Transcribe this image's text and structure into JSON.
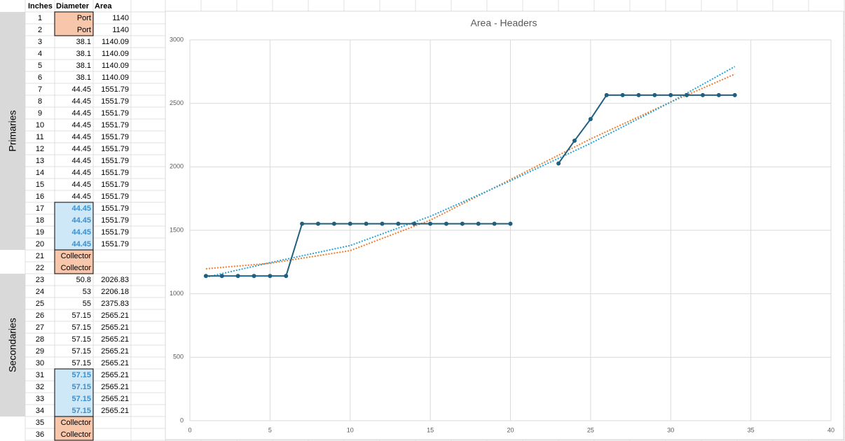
{
  "table": {
    "header": [
      "Inches",
      "Diameter",
      "Area"
    ],
    "groups": [
      "Primaries",
      "Secondaries"
    ],
    "rows": [
      [
        "1",
        "Port",
        "1140"
      ],
      [
        "2",
        "Port",
        "1140"
      ],
      [
        "3",
        "38.1",
        "1140.09"
      ],
      [
        "4",
        "38.1",
        "1140.09"
      ],
      [
        "5",
        "38.1",
        "1140.09"
      ],
      [
        "6",
        "38.1",
        "1140.09"
      ],
      [
        "7",
        "44.45",
        "1551.79"
      ],
      [
        "8",
        "44.45",
        "1551.79"
      ],
      [
        "9",
        "44.45",
        "1551.79"
      ],
      [
        "10",
        "44.45",
        "1551.79"
      ],
      [
        "11",
        "44.45",
        "1551.79"
      ],
      [
        "12",
        "44.45",
        "1551.79"
      ],
      [
        "13",
        "44.45",
        "1551.79"
      ],
      [
        "14",
        "44.45",
        "1551.79"
      ],
      [
        "15",
        "44.45",
        "1551.79"
      ],
      [
        "16",
        "44.45",
        "1551.79"
      ],
      [
        "17",
        "44.45",
        "1551.79"
      ],
      [
        "18",
        "44.45",
        "1551.79"
      ],
      [
        "19",
        "44.45",
        "1551.79"
      ],
      [
        "20",
        "44.45",
        "1551.79"
      ],
      [
        "21",
        "Collector",
        null
      ],
      [
        "22",
        "Collector",
        null
      ],
      [
        "23",
        "50.8",
        "2026.83"
      ],
      [
        "24",
        "53",
        "2206.18"
      ],
      [
        "25",
        "55",
        "2375.83"
      ],
      [
        "26",
        "57.15",
        "2565.21"
      ],
      [
        "27",
        "57.15",
        "2565.21"
      ],
      [
        "28",
        "57.15",
        "2565.21"
      ],
      [
        "29",
        "57.15",
        "2565.21"
      ],
      [
        "30",
        "57.15",
        "2565.21"
      ],
      [
        "31",
        "57.15",
        "2565.21"
      ],
      [
        "32",
        "57.15",
        "2565.21"
      ],
      [
        "33",
        "57.15",
        "2565.21"
      ],
      [
        "34",
        "57.15",
        "2565.21"
      ],
      [
        "35",
        "Collector",
        null
      ],
      [
        "36",
        "Collector",
        null
      ]
    ]
  },
  "chart_data": {
    "type": "line",
    "title": "Area - Headers",
    "x": [
      1,
      2,
      3,
      4,
      5,
      6,
      7,
      8,
      9,
      10,
      11,
      12,
      13,
      14,
      15,
      16,
      17,
      18,
      19,
      20,
      21,
      22,
      23,
      24,
      25,
      26,
      27,
      28,
      29,
      30,
      31,
      32,
      33,
      34
    ],
    "series": [
      {
        "color": "#1f5f7f",
        "values": [
          1140,
          1140,
          1140.09,
          1140.09,
          1140.09,
          1140.09,
          1551.79,
          1551.79,
          1551.79,
          1551.79,
          1551.79,
          1551.79,
          1551.79,
          1551.79,
          1551.79,
          1551.79,
          1551.79,
          1551.79,
          1551.79,
          1551.79,
          null,
          null,
          2026.83,
          2206.18,
          2375.83,
          2565.21,
          2565.21,
          2565.21,
          2565.21,
          2565.21,
          2565.21,
          2565.21,
          2565.21,
          2565.21
        ]
      }
    ],
    "trendlines": [
      {
        "color": "#ed7d31",
        "x": [
          1,
          5,
          10,
          15,
          20,
          25,
          30,
          34
        ],
        "values": [
          1197,
          1240,
          1340,
          1580,
          1900,
          2220,
          2510,
          2730
        ]
      },
      {
        "color": "#2aa3d4",
        "x": [
          1,
          5,
          10,
          15,
          20,
          25,
          30,
          34
        ],
        "values": [
          1130,
          1245,
          1380,
          1610,
          1890,
          2185,
          2510,
          2790
        ]
      }
    ],
    "xlim": [
      0,
      40
    ],
    "xticks": [
      0,
      5,
      10,
      15,
      20,
      25,
      30,
      35,
      40
    ],
    "ylim": [
      0,
      3000
    ],
    "yticks": [
      0,
      500,
      1000,
      1500,
      2000,
      2500,
      3000
    ],
    "grid": true
  }
}
